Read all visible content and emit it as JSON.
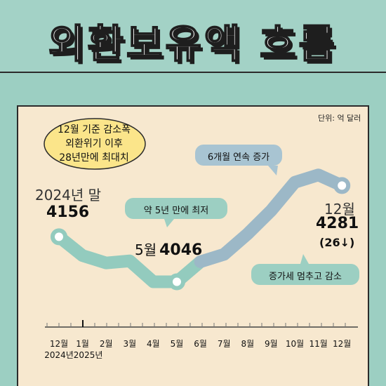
{
  "title": "외환보유액 흐름",
  "unit": "단위: 억 달러",
  "note_cloud": [
    "12월 기준 감소폭",
    "외환위기 이후",
    "28년만에 최대치"
  ],
  "annotations": {
    "start_label": "2024년 말",
    "start_value": "4156",
    "may_month": "5월",
    "may_value": "4046",
    "end_month": "12월",
    "end_value": "4281",
    "end_change": "(26↓)",
    "callout_low": "약 5년 만에 최저",
    "callout_rise": "6개월 연속 증가",
    "callout_stop": "증가세 멈추고 감소"
  },
  "chart_data": {
    "type": "line",
    "title": "외환보유액 흐름",
    "xlabel": "",
    "ylabel": "",
    "unit": "억 달러",
    "categories": [
      "12월",
      "1월",
      "2월",
      "3월",
      "4월",
      "5월",
      "6월",
      "7월",
      "8월",
      "9월",
      "10월",
      "11월",
      "12월"
    ],
    "year_labels": [
      "2024년",
      "2025년"
    ],
    "values": [
      4156,
      4110,
      4092,
      4097,
      4046,
      4046,
      4095,
      4113,
      4163,
      4220,
      4289,
      4307,
      4281
    ],
    "highlighted_indices": [
      0,
      5,
      12
    ],
    "ylim": [
      3980,
      4340
    ],
    "grid": false,
    "colors": {
      "decline_line": "#93cbbe",
      "rise_line": "#9cb8c7",
      "background": "#9ccfc2",
      "panel": "#f7e8cf"
    }
  }
}
